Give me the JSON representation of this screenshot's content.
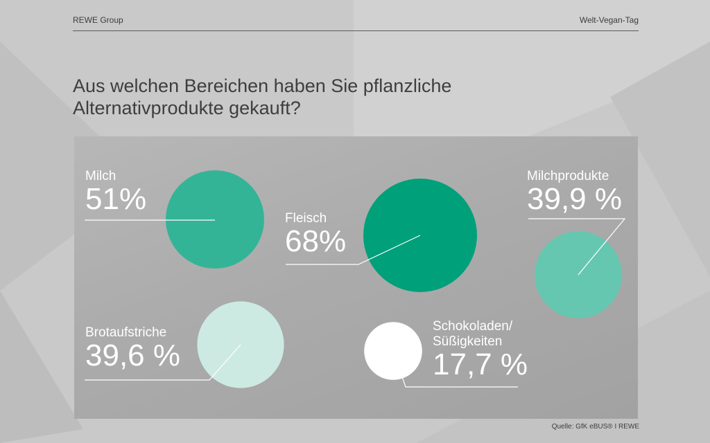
{
  "header": {
    "brand": "REWE Group",
    "topic": "Welt-Vegan-Tag"
  },
  "title_lines": [
    "Aus welchen Bereichen haben Sie pflanzliche",
    "Alternativprodukte gekauft?"
  ],
  "source": "Quelle: GfK eBUS® I REWE",
  "colors": {
    "background": "#c9c9c9",
    "panel": "#adadad",
    "milch": "#34b496",
    "fleisch": "#00a07a",
    "milchprodukte": "#66c7b0",
    "brotaufstriche": "#cdeae2",
    "schokolade": "#ffffff",
    "text": "#ffffff"
  },
  "chart_data": {
    "type": "bubble",
    "title": "Aus welchen Bereichen haben Sie pflanzliche Alternativprodukte gekauft?",
    "unit": "%",
    "items": [
      {
        "category": "Milch",
        "value": 51,
        "value_label": "51%",
        "color": "#34b496"
      },
      {
        "category": "Fleisch",
        "value": 68,
        "value_label": "68%",
        "color": "#00a07a"
      },
      {
        "category": "Milchprodukte",
        "value": 39.9,
        "value_label": "39,9 %",
        "color": "#66c7b0"
      },
      {
        "category": "Brotaufstriche",
        "value": 39.6,
        "value_label": "39,6 %",
        "color": "#cdeae2"
      },
      {
        "category": "Schokoladen/ Süßigkeiten",
        "category_lines": [
          "Schokoladen/",
          "Süßigkeiten"
        ],
        "value": 17.7,
        "value_label": "17,7 %",
        "color": "#ffffff"
      }
    ]
  }
}
